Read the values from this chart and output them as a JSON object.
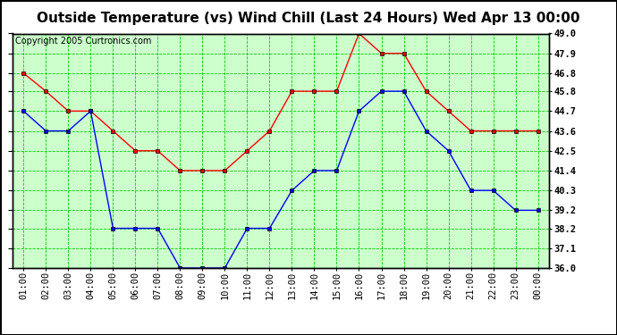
{
  "title": "Outside Temperature (vs) Wind Chill (Last 24 Hours) Wed Apr 13 00:00",
  "copyright": "Copyright 2005 Curtronics.com",
  "x_labels": [
    "01:00",
    "02:00",
    "03:00",
    "04:00",
    "05:00",
    "06:00",
    "07:00",
    "08:00",
    "09:00",
    "10:00",
    "11:00",
    "12:00",
    "13:00",
    "14:00",
    "15:00",
    "16:00",
    "17:00",
    "18:00",
    "19:00",
    "20:00",
    "21:00",
    "22:00",
    "23:00",
    "00:00"
  ],
  "outside_temp": [
    44.7,
    43.6,
    43.6,
    44.7,
    38.2,
    38.2,
    38.2,
    36.0,
    36.0,
    36.0,
    38.2,
    38.2,
    40.3,
    41.4,
    41.4,
    44.7,
    45.8,
    45.8,
    43.6,
    42.5,
    40.3,
    40.3,
    39.2,
    39.2
  ],
  "wind_chill": [
    46.8,
    45.8,
    44.7,
    44.7,
    43.6,
    42.5,
    42.5,
    41.4,
    41.4,
    41.4,
    42.5,
    43.6,
    45.8,
    45.8,
    45.8,
    49.0,
    47.9,
    47.9,
    45.8,
    44.7,
    43.6,
    43.6,
    43.6,
    43.6
  ],
  "outside_color": "#0000ff",
  "windchill_color": "#ff0000",
  "bg_color": "#ffffff",
  "plot_bg_color": "#ccffcc",
  "grid_color": "#00cc00",
  "ymin": 36.0,
  "ymax": 49.0,
  "yticks": [
    36.0,
    37.1,
    38.2,
    39.2,
    40.3,
    41.4,
    42.5,
    43.6,
    44.7,
    45.8,
    46.8,
    47.9,
    49.0
  ],
  "title_fontsize": 11,
  "copyright_fontsize": 7,
  "tick_fontsize": 7.5
}
